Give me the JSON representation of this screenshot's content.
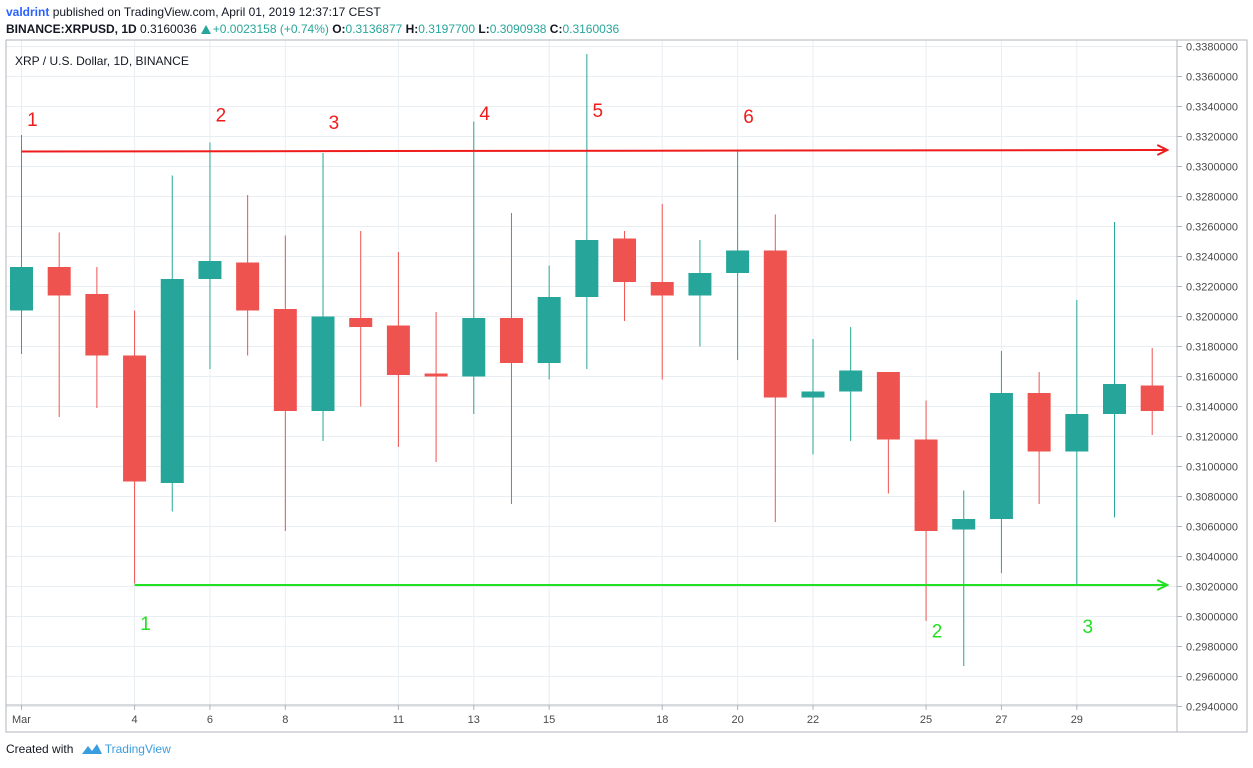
{
  "header": {
    "user": "valdrint",
    "published_text": "published on TradingView.com, April 01, 2019 12:37:17 CEST",
    "symbol": "BINANCE:XRPUSD, 1D",
    "last": "0.3160036",
    "change": "+0.0023158 (+0.74%)",
    "o_label": "O:",
    "o_value": "0.3136877",
    "h_label": "H:",
    "h_value": "0.3197700",
    "l_label": "L:",
    "l_value": "0.3090938",
    "c_label": "C:",
    "c_value": "0.3160036"
  },
  "chart_title": "XRP / U.S. Dollar, 1D, BINANCE",
  "footer": {
    "created_with": "Created with",
    "brand": "TradingView"
  },
  "colors": {
    "up": "#26a69a",
    "down": "#ef5350",
    "resistance": "#ef1c1c",
    "support": "#22e022",
    "grid": "#e9eef3"
  },
  "chart_data": {
    "type": "candlestick",
    "title": "XRP / U.S. Dollar, 1D, BINANCE",
    "ylim": [
      0.294,
      0.338
    ],
    "x_ticks": [
      "Mar",
      "4",
      "6",
      "8",
      "11",
      "13",
      "15",
      "18",
      "20",
      "22",
      "25",
      "27",
      "29"
    ],
    "x_tick_day_index": [
      0,
      3,
      5,
      7,
      10,
      12,
      14,
      17,
      19,
      21,
      24,
      26,
      28
    ],
    "y_ticks": [
      "0.2940000",
      "0.2960000",
      "0.2980000",
      "0.3000000",
      "0.3020000",
      "0.3040000",
      "0.3060000",
      "0.3080000",
      "0.3100000",
      "0.3120000",
      "0.3140000",
      "0.3160000",
      "0.3180000",
      "0.3200000",
      "0.3220000",
      "0.3240000",
      "0.3260000",
      "0.3280000",
      "0.3300000",
      "0.3320000",
      "0.3340000",
      "0.3360000",
      "0.3380000"
    ],
    "candles": [
      {
        "o": 0.3204,
        "h": 0.3321,
        "l": 0.3175,
        "c": 0.3233
      },
      {
        "o": 0.3233,
        "h": 0.3256,
        "l": 0.3133,
        "c": 0.3214
      },
      {
        "o": 0.3215,
        "h": 0.3233,
        "l": 0.3139,
        "c": 0.3174
      },
      {
        "o": 0.3174,
        "h": 0.3204,
        "l": 0.3022,
        "c": 0.309
      },
      {
        "o": 0.3089,
        "h": 0.3294,
        "l": 0.307,
        "c": 0.3225
      },
      {
        "o": 0.3225,
        "h": 0.3316,
        "l": 0.3165,
        "c": 0.3237
      },
      {
        "o": 0.3236,
        "h": 0.3281,
        "l": 0.3174,
        "c": 0.3204
      },
      {
        "o": 0.3205,
        "h": 0.3254,
        "l": 0.3057,
        "c": 0.3137
      },
      {
        "o": 0.3137,
        "h": 0.3309,
        "l": 0.3117,
        "c": 0.32
      },
      {
        "o": 0.3199,
        "h": 0.3257,
        "l": 0.314,
        "c": 0.3193
      },
      {
        "o": 0.3194,
        "h": 0.3243,
        "l": 0.3113,
        "c": 0.3161
      },
      {
        "o": 0.3162,
        "h": 0.3203,
        "l": 0.3103,
        "c": 0.316
      },
      {
        "o": 0.316,
        "h": 0.333,
        "l": 0.3135,
        "c": 0.3199
      },
      {
        "o": 0.3199,
        "h": 0.3269,
        "l": 0.3075,
        "c": 0.3169
      },
      {
        "o": 0.3169,
        "h": 0.3234,
        "l": 0.3158,
        "c": 0.3213
      },
      {
        "o": 0.3213,
        "h": 0.3375,
        "l": 0.3165,
        "c": 0.3251
      },
      {
        "o": 0.3252,
        "h": 0.3257,
        "l": 0.3197,
        "c": 0.3223
      },
      {
        "o": 0.3223,
        "h": 0.3275,
        "l": 0.3158,
        "c": 0.3214
      },
      {
        "o": 0.3214,
        "h": 0.3251,
        "l": 0.318,
        "c": 0.3229
      },
      {
        "o": 0.3229,
        "h": 0.331,
        "l": 0.3171,
        "c": 0.3244
      },
      {
        "o": 0.3244,
        "h": 0.3268,
        "l": 0.3063,
        "c": 0.3146
      },
      {
        "o": 0.3146,
        "h": 0.3185,
        "l": 0.3108,
        "c": 0.315
      },
      {
        "o": 0.315,
        "h": 0.3193,
        "l": 0.3117,
        "c": 0.3164
      },
      {
        "o": 0.3163,
        "h": 0.3163,
        "l": 0.3082,
        "c": 0.3118
      },
      {
        "o": 0.3118,
        "h": 0.3144,
        "l": 0.2997,
        "c": 0.3057
      },
      {
        "o": 0.3058,
        "h": 0.3084,
        "l": 0.2967,
        "c": 0.3065
      },
      {
        "o": 0.3065,
        "h": 0.3177,
        "l": 0.3029,
        "c": 0.3149
      },
      {
        "o": 0.3149,
        "h": 0.3163,
        "l": 0.3075,
        "c": 0.311
      },
      {
        "o": 0.311,
        "h": 0.3211,
        "l": 0.3021,
        "c": 0.3135
      },
      {
        "o": 0.3135,
        "h": 0.3263,
        "l": 0.3066,
        "c": 0.3155
      },
      {
        "o": 0.3154,
        "h": 0.3179,
        "l": 0.3121,
        "c": 0.3137
      }
    ],
    "resistance": {
      "from": 0.331,
      "to": 0.3311,
      "start_day": 0,
      "end_day": 30.4
    },
    "support": {
      "level": 0.3021,
      "start_day": 3,
      "end_day": 30.4
    },
    "resistance_labels": [
      {
        "text": "1",
        "day": 0.15,
        "price": 0.3327
      },
      {
        "text": "2",
        "day": 5.15,
        "price": 0.333
      },
      {
        "text": "3",
        "day": 8.15,
        "price": 0.3325
      },
      {
        "text": "4",
        "day": 12.15,
        "price": 0.3331
      },
      {
        "text": "5",
        "day": 15.15,
        "price": 0.3333
      },
      {
        "text": "6",
        "day": 19.15,
        "price": 0.3329
      }
    ],
    "support_labels": [
      {
        "text": "1",
        "day": 3.15,
        "price": 0.2991
      },
      {
        "text": "2",
        "day": 24.15,
        "price": 0.2986
      },
      {
        "text": "3",
        "day": 28.15,
        "price": 0.2989
      }
    ]
  }
}
